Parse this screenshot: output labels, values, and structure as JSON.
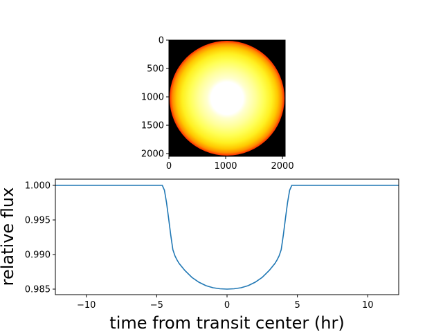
{
  "chart_data": [
    {
      "type": "heatmap",
      "title": "",
      "xlabel": "",
      "ylabel": "",
      "xlim": [
        0,
        2048
      ],
      "ylim": [
        2048,
        0
      ],
      "xticks": [
        0,
        1000,
        2000
      ],
      "yticks": [
        0,
        500,
        1000,
        1500,
        2000
      ],
      "image_size": [
        2048,
        2048
      ],
      "colormap": "hot",
      "background_color": "#000000",
      "description_values": {
        "disk_center": [
          1024,
          1024
        ],
        "disk_radius_px": 1010,
        "limb_color": "#ff2a00",
        "center_color": "#ffffff"
      }
    },
    {
      "type": "line",
      "title": "",
      "xlabel": "time from transit center (hr)",
      "ylabel": "relative flux",
      "xlim": [
        -12.2,
        12.2
      ],
      "ylim": [
        0.9842,
        1.0009
      ],
      "xticks": [
        -10,
        -5,
        0,
        5,
        10
      ],
      "yticks": [
        1.0,
        0.995,
        0.99,
        0.985
      ],
      "ytick_labels": [
        "1.000",
        "0.995",
        "0.990",
        "0.985"
      ],
      "line_color": "#1f77b4",
      "grid": false,
      "series": [
        {
          "x": [
            -12.2,
            -8,
            -4.6,
            -4.45,
            -4.3,
            -4.15,
            -4.0,
            -3.85,
            -3.7,
            -3.55,
            -3.4,
            -3.0,
            -2.5,
            -2.0,
            -1.5,
            -1.0,
            -0.5,
            0.0,
            0.5,
            1.0,
            1.5,
            2.0,
            2.5,
            3.0,
            3.4,
            3.55,
            3.7,
            3.85,
            4.0,
            4.15,
            4.3,
            4.45,
            4.6,
            8,
            12.2
          ],
          "y": [
            1.0,
            1.0,
            1.0,
            0.9993,
            0.9975,
            0.9952,
            0.9928,
            0.9907,
            0.9898,
            0.9892,
            0.9887,
            0.9877,
            0.9867,
            0.986,
            0.9855,
            0.9852,
            0.98505,
            0.985,
            0.98505,
            0.9852,
            0.9855,
            0.986,
            0.9867,
            0.9877,
            0.9887,
            0.9892,
            0.9898,
            0.9907,
            0.9928,
            0.9952,
            0.9975,
            0.9993,
            1.0,
            1.0,
            1.0
          ]
        }
      ]
    }
  ]
}
